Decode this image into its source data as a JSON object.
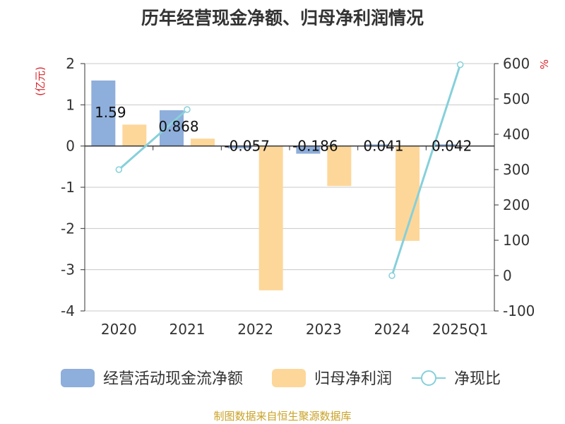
{
  "chart_data": {
    "type": "bar",
    "title": "历年经营现金净额、归母净利润情况",
    "categories": [
      "2020",
      "2021",
      "2022",
      "2023",
      "2024",
      "2025Q1"
    ],
    "y_left": {
      "unit_label": "(亿元)",
      "range": [
        -4,
        2
      ],
      "ticks": [
        "2",
        "1",
        "0",
        "-1",
        "-2",
        "-3",
        "-4"
      ]
    },
    "y_right": {
      "unit_label": "%",
      "range": [
        -100,
        600
      ],
      "ticks": [
        "600",
        "500",
        "400",
        "300",
        "200",
        "100",
        "0",
        "-100"
      ]
    },
    "series": [
      {
        "name": "经营活动现金流净额",
        "kind": "bar",
        "axis": "left",
        "color": "#8eaedb",
        "values": [
          1.59,
          0.868,
          -0.057,
          -0.186,
          0.041,
          0.042
        ],
        "labels": [
          "1.59",
          "0.868",
          "-0.057",
          "-0.186",
          "0.041",
          "0.042"
        ]
      },
      {
        "name": "归母净利润",
        "kind": "bar",
        "axis": "left",
        "color": "#fdd79a",
        "values": [
          0.52,
          0.18,
          -3.5,
          -0.97,
          -2.3,
          null
        ]
      },
      {
        "name": "净现比",
        "kind": "line",
        "axis": "right",
        "color": "#86d0da",
        "values": [
          300,
          470,
          null,
          null,
          0,
          597
        ]
      }
    ],
    "grid": true,
    "legend_position": "bottom"
  },
  "source_note": "制图数据来自恒生聚源数据库"
}
